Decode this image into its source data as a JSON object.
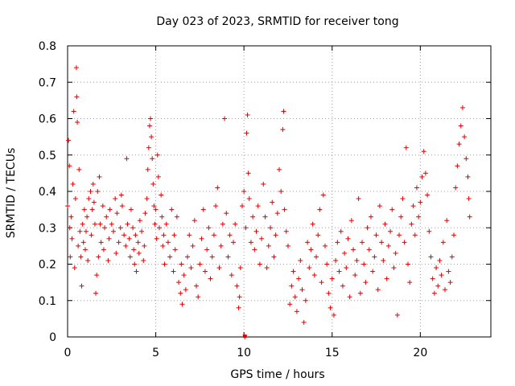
{
  "chart_data": {
    "type": "scatter",
    "title": "Day 023 of 2023, SRMTID for receiver tong",
    "xlabel": "GPS time / hours",
    "ylabel": "SRMTID / TECUs",
    "xlim": [
      0,
      24
    ],
    "ylim": [
      0,
      0.8
    ],
    "xticks": [
      0,
      5,
      10,
      15,
      20
    ],
    "xtick_labels": [
      "0",
      "5",
      "10",
      "15",
      "20"
    ],
    "yticks": [
      0,
      0.1,
      0.2,
      0.3,
      0.4,
      0.5,
      0.6,
      0.7,
      0.8
    ],
    "ytick_labels": [
      "0",
      "0.1",
      "0.2",
      "0.3",
      "0.4",
      "0.5",
      "0.6",
      "0.7",
      "0.8"
    ],
    "grid": true,
    "marker": "+",
    "marker_color": "#e00000",
    "highlight_point": {
      "x": 10.05,
      "y": 0.0
    },
    "series": [
      {
        "name": "SRMTID",
        "points": [
          [
            0.0,
            0.36
          ],
          [
            0.05,
            0.54
          ],
          [
            0.1,
            0.47
          ],
          [
            0.12,
            0.3
          ],
          [
            0.15,
            0.22
          ],
          [
            0.2,
            0.33
          ],
          [
            0.25,
            0.27
          ],
          [
            0.3,
            0.42
          ],
          [
            0.35,
            0.62
          ],
          [
            0.4,
            0.19
          ],
          [
            0.45,
            0.38
          ],
          [
            0.5,
            0.74
          ],
          [
            0.52,
            0.66
          ],
          [
            0.55,
            0.59
          ],
          [
            0.6,
            0.25
          ],
          [
            0.65,
            0.46
          ],
          [
            0.7,
            0.29
          ],
          [
            0.75,
            0.22
          ],
          [
            0.8,
            0.14
          ],
          [
            0.85,
            0.31
          ],
          [
            0.9,
            0.26
          ],
          [
            0.95,
            0.35
          ],
          [
            1.0,
            0.24
          ],
          [
            1.05,
            0.29
          ],
          [
            1.1,
            0.33
          ],
          [
            1.15,
            0.21
          ],
          [
            1.2,
            0.38
          ],
          [
            1.3,
            0.4
          ],
          [
            1.35,
            0.28
          ],
          [
            1.4,
            0.35
          ],
          [
            1.45,
            0.42
          ],
          [
            1.5,
            0.37
          ],
          [
            1.55,
            0.31
          ],
          [
            1.6,
            0.12
          ],
          [
            1.65,
            0.17
          ],
          [
            1.7,
            0.4
          ],
          [
            1.75,
            0.22
          ],
          [
            1.8,
            0.44
          ],
          [
            1.85,
            0.31
          ],
          [
            1.9,
            0.26
          ],
          [
            2.0,
            0.36
          ],
          [
            2.05,
            0.24
          ],
          [
            2.1,
            0.3
          ],
          [
            2.2,
            0.33
          ],
          [
            2.3,
            0.21
          ],
          [
            2.35,
            0.27
          ],
          [
            2.4,
            0.35
          ],
          [
            2.5,
            0.31
          ],
          [
            2.6,
            0.29
          ],
          [
            2.7,
            0.38
          ],
          [
            2.75,
            0.23
          ],
          [
            2.8,
            0.34
          ],
          [
            2.9,
            0.26
          ],
          [
            3.0,
            0.3
          ],
          [
            3.05,
            0.39
          ],
          [
            3.1,
            0.36
          ],
          [
            3.2,
            0.28
          ],
          [
            3.3,
            0.25
          ],
          [
            3.35,
            0.49
          ],
          [
            3.4,
            0.31
          ],
          [
            3.5,
            0.27
          ],
          [
            3.55,
            0.22
          ],
          [
            3.6,
            0.35
          ],
          [
            3.7,
            0.3
          ],
          [
            3.75,
            0.24
          ],
          [
            3.8,
            0.2
          ],
          [
            3.85,
            0.28
          ],
          [
            3.9,
            0.18
          ],
          [
            4.0,
            0.26
          ],
          [
            4.05,
            0.23
          ],
          [
            4.1,
            0.32
          ],
          [
            4.2,
            0.29
          ],
          [
            4.3,
            0.21
          ],
          [
            4.35,
            0.25
          ],
          [
            4.4,
            0.34
          ],
          [
            4.5,
            0.38
          ],
          [
            4.55,
            0.46
          ],
          [
            4.6,
            0.52
          ],
          [
            4.65,
            0.58
          ],
          [
            4.7,
            0.6
          ],
          [
            4.75,
            0.55
          ],
          [
            4.8,
            0.49
          ],
          [
            4.85,
            0.42
          ],
          [
            4.9,
            0.36
          ],
          [
            4.95,
            0.31
          ],
          [
            5.0,
            0.35
          ],
          [
            5.05,
            0.27
          ],
          [
            5.1,
            0.5
          ],
          [
            5.15,
            0.44
          ],
          [
            5.2,
            0.3
          ],
          [
            5.3,
            0.39
          ],
          [
            5.35,
            0.33
          ],
          [
            5.4,
            0.25
          ],
          [
            5.45,
            0.28
          ],
          [
            5.5,
            0.2
          ],
          [
            5.6,
            0.31
          ],
          [
            5.7,
            0.26
          ],
          [
            5.8,
            0.22
          ],
          [
            5.9,
            0.35
          ],
          [
            6.0,
            0.18
          ],
          [
            6.05,
            0.28
          ],
          [
            6.1,
            0.24
          ],
          [
            6.2,
            0.33
          ],
          [
            6.3,
            0.15
          ],
          [
            6.4,
            0.12
          ],
          [
            6.45,
            0.2
          ],
          [
            6.5,
            0.09
          ],
          [
            6.6,
            0.17
          ],
          [
            6.7,
            0.13
          ],
          [
            6.8,
            0.22
          ],
          [
            6.9,
            0.28
          ],
          [
            7.0,
            0.19
          ],
          [
            7.1,
            0.25
          ],
          [
            7.2,
            0.32
          ],
          [
            7.3,
            0.14
          ],
          [
            7.4,
            0.11
          ],
          [
            7.5,
            0.2
          ],
          [
            7.6,
            0.27
          ],
          [
            7.7,
            0.35
          ],
          [
            7.8,
            0.18
          ],
          [
            7.9,
            0.24
          ],
          [
            8.0,
            0.3
          ],
          [
            8.1,
            0.16
          ],
          [
            8.2,
            0.22
          ],
          [
            8.3,
            0.28
          ],
          [
            8.4,
            0.36
          ],
          [
            8.5,
            0.41
          ],
          [
            8.6,
            0.19
          ],
          [
            8.7,
            0.25
          ],
          [
            8.8,
            0.31
          ],
          [
            8.9,
            0.6
          ],
          [
            9.0,
            0.34
          ],
          [
            9.1,
            0.22
          ],
          [
            9.2,
            0.28
          ],
          [
            9.3,
            0.17
          ],
          [
            9.4,
            0.26
          ],
          [
            9.5,
            0.31
          ],
          [
            9.6,
            0.14
          ],
          [
            9.7,
            0.08
          ],
          [
            9.75,
            0.11
          ],
          [
            9.8,
            0.19
          ],
          [
            9.9,
            0.36
          ],
          [
            10.0,
            0.4
          ],
          [
            10.05,
            0.0
          ],
          [
            10.1,
            0.3
          ],
          [
            10.15,
            0.56
          ],
          [
            10.2,
            0.61
          ],
          [
            10.25,
            0.45
          ],
          [
            10.3,
            0.38
          ],
          [
            10.4,
            0.26
          ],
          [
            10.5,
            0.33
          ],
          [
            10.6,
            0.24
          ],
          [
            10.7,
            0.29
          ],
          [
            10.8,
            0.36
          ],
          [
            10.9,
            0.2
          ],
          [
            11.0,
            0.27
          ],
          [
            11.1,
            0.42
          ],
          [
            11.2,
            0.33
          ],
          [
            11.3,
            0.19
          ],
          [
            11.4,
            0.25
          ],
          [
            11.5,
            0.3
          ],
          [
            11.6,
            0.37
          ],
          [
            11.7,
            0.22
          ],
          [
            11.8,
            0.28
          ],
          [
            11.9,
            0.34
          ],
          [
            12.0,
            0.46
          ],
          [
            12.1,
            0.4
          ],
          [
            12.2,
            0.57
          ],
          [
            12.25,
            0.62
          ],
          [
            12.3,
            0.35
          ],
          [
            12.4,
            0.29
          ],
          [
            12.5,
            0.25
          ],
          [
            12.6,
            0.09
          ],
          [
            12.7,
            0.14
          ],
          [
            12.8,
            0.18
          ],
          [
            12.9,
            0.11
          ],
          [
            13.0,
            0.07
          ],
          [
            13.1,
            0.16
          ],
          [
            13.2,
            0.21
          ],
          [
            13.3,
            0.13
          ],
          [
            13.4,
            0.04
          ],
          [
            13.5,
            0.1
          ],
          [
            13.6,
            0.26
          ],
          [
            13.7,
            0.19
          ],
          [
            13.8,
            0.24
          ],
          [
            13.9,
            0.31
          ],
          [
            14.0,
            0.17
          ],
          [
            14.1,
            0.22
          ],
          [
            14.2,
            0.28
          ],
          [
            14.3,
            0.35
          ],
          [
            14.4,
            0.15
          ],
          [
            14.5,
            0.39
          ],
          [
            14.6,
            0.25
          ],
          [
            14.7,
            0.2
          ],
          [
            14.8,
            0.12
          ],
          [
            14.9,
            0.08
          ],
          [
            15.0,
            0.16
          ],
          [
            15.1,
            0.06
          ],
          [
            15.2,
            0.21
          ],
          [
            15.3,
            0.26
          ],
          [
            15.4,
            0.18
          ],
          [
            15.5,
            0.29
          ],
          [
            15.6,
            0.14
          ],
          [
            15.7,
            0.23
          ],
          [
            15.8,
            0.19
          ],
          [
            15.9,
            0.27
          ],
          [
            16.0,
            0.11
          ],
          [
            16.1,
            0.32
          ],
          [
            16.2,
            0.24
          ],
          [
            16.3,
            0.17
          ],
          [
            16.4,
            0.21
          ],
          [
            16.5,
            0.38
          ],
          [
            16.6,
            0.12
          ],
          [
            16.7,
            0.26
          ],
          [
            16.8,
            0.2
          ],
          [
            16.9,
            0.15
          ],
          [
            17.0,
            0.3
          ],
          [
            17.1,
            0.24
          ],
          [
            17.2,
            0.33
          ],
          [
            17.3,
            0.18
          ],
          [
            17.4,
            0.22
          ],
          [
            17.5,
            0.28
          ],
          [
            17.6,
            0.13
          ],
          [
            17.7,
            0.36
          ],
          [
            17.8,
            0.26
          ],
          [
            17.9,
            0.21
          ],
          [
            18.0,
            0.31
          ],
          [
            18.1,
            0.16
          ],
          [
            18.2,
            0.25
          ],
          [
            18.3,
            0.29
          ],
          [
            18.4,
            0.35
          ],
          [
            18.5,
            0.19
          ],
          [
            18.6,
            0.23
          ],
          [
            18.7,
            0.06
          ],
          [
            18.8,
            0.28
          ],
          [
            18.9,
            0.33
          ],
          [
            19.0,
            0.38
          ],
          [
            19.1,
            0.26
          ],
          [
            19.2,
            0.52
          ],
          [
            19.3,
            0.2
          ],
          [
            19.4,
            0.15
          ],
          [
            19.5,
            0.31
          ],
          [
            19.6,
            0.36
          ],
          [
            19.7,
            0.28
          ],
          [
            19.8,
            0.41
          ],
          [
            19.9,
            0.33
          ],
          [
            20.0,
            0.37
          ],
          [
            20.1,
            0.44
          ],
          [
            20.2,
            0.51
          ],
          [
            20.3,
            0.45
          ],
          [
            20.4,
            0.39
          ],
          [
            20.5,
            0.29
          ],
          [
            20.6,
            0.22
          ],
          [
            20.7,
            0.16
          ],
          [
            20.8,
            0.12
          ],
          [
            20.9,
            0.19
          ],
          [
            21.0,
            0.14
          ],
          [
            21.1,
            0.21
          ],
          [
            21.2,
            0.17
          ],
          [
            21.3,
            0.26
          ],
          [
            21.4,
            0.13
          ],
          [
            21.5,
            0.32
          ],
          [
            21.6,
            0.18
          ],
          [
            21.7,
            0.15
          ],
          [
            21.8,
            0.22
          ],
          [
            21.9,
            0.28
          ],
          [
            22.0,
            0.41
          ],
          [
            22.1,
            0.47
          ],
          [
            22.2,
            0.53
          ],
          [
            22.3,
            0.58
          ],
          [
            22.4,
            0.63
          ],
          [
            22.5,
            0.55
          ],
          [
            22.6,
            0.49
          ],
          [
            22.7,
            0.44
          ],
          [
            22.75,
            0.38
          ],
          [
            22.8,
            0.33
          ]
        ]
      }
    ]
  }
}
